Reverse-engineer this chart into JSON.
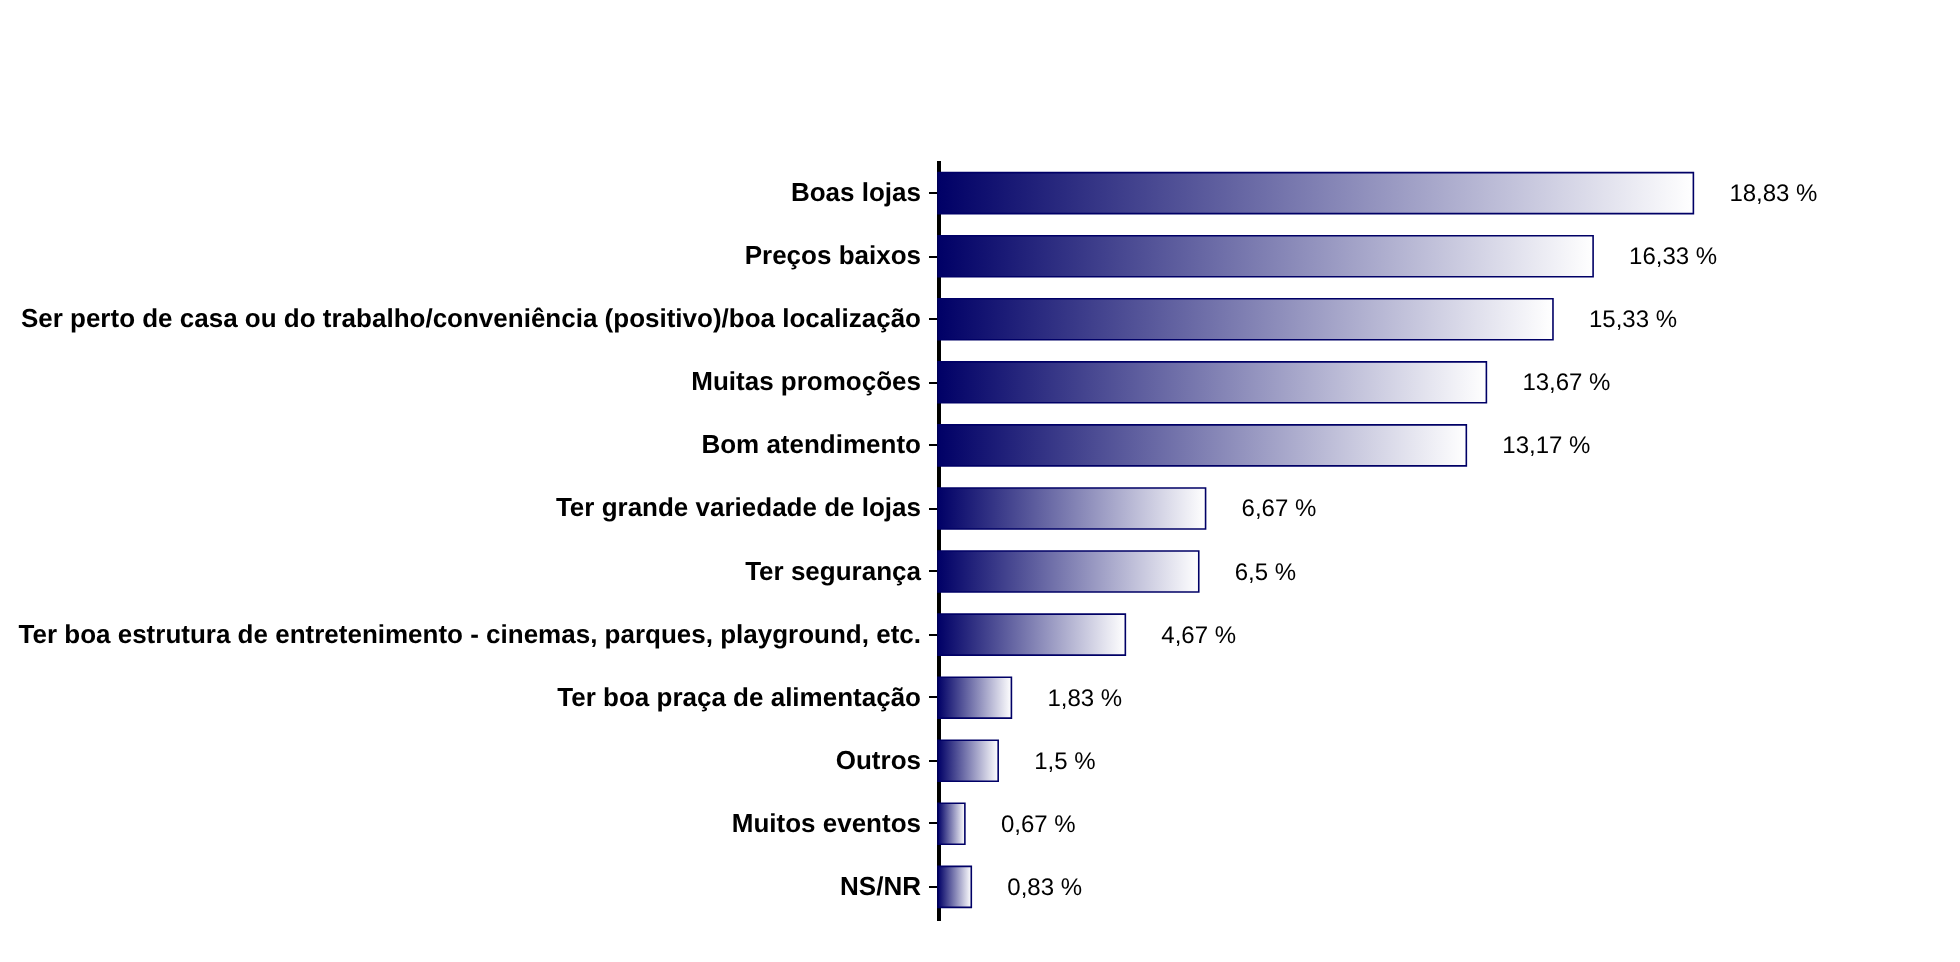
{
  "chart_data": {
    "type": "bar",
    "orientation": "horizontal",
    "color": "#000066",
    "tick_labels": "y",
    "categories": [
      "Boas lojas",
      "Preços baixos",
      "Ser perto de casa ou do trabalho/conveniência (positivo)/boa localização",
      "Muitas promoções",
      "Bom atendimento",
      "Ter grande variedade de lojas",
      "Ter segurança",
      "Ter boa estrutura de entretenimento - cinemas, parques, playground, etc.",
      "Ter boa praça de alimentação",
      "Outros",
      "Muitos eventos",
      "NS/NR"
    ],
    "values": [
      18.83,
      16.33,
      15.33,
      13.67,
      13.17,
      6.67,
      6.5,
      4.67,
      1.83,
      1.5,
      0.67,
      0.83
    ],
    "value_labels": [
      "18,83 %",
      "16,33 %",
      "15,33 %",
      "13,67 %",
      "13,17 %",
      "6,67 %",
      "6,5 %",
      "4,67 %",
      "1,83 %",
      "1,5 %",
      "0,67 %",
      "0,83 %"
    ]
  }
}
